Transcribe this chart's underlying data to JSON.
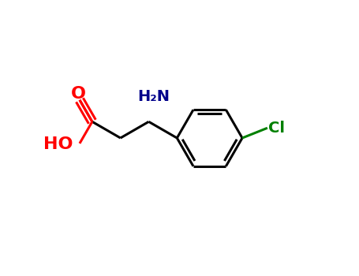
{
  "background_color": "#ffffff",
  "figsize": [
    4.55,
    3.5
  ],
  "dpi": 100,
  "bond_color": "#000000",
  "bond_lw": 2.2,
  "o_color": "#ff0000",
  "n_color": "#00008b",
  "cl_color": "#008000",
  "label_fontsize": 14,
  "xlim": [
    -0.05,
    1.05
  ],
  "ylim": [
    -0.05,
    1.05
  ]
}
